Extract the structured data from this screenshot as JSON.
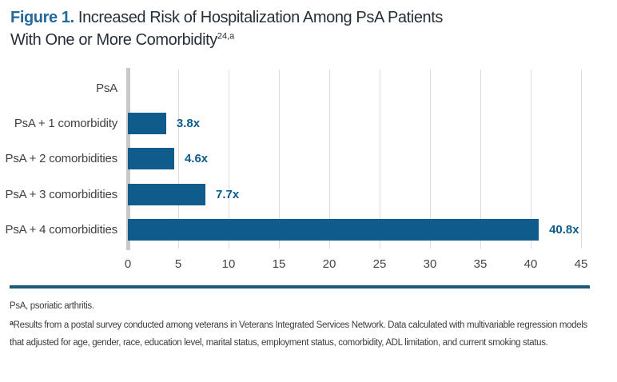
{
  "title": {
    "prefix": "Figure 1.",
    "line1_rest": " Increased Risk of Hospitalization Among PsA Patients",
    "line2": "With One or More Comorbidity",
    "superscript": "24,a"
  },
  "chart_data": {
    "type": "bar",
    "orientation": "horizontal",
    "title": "Figure 1. Increased Risk of Hospitalization Among PsA Patients With One or More Comorbidity",
    "categories": [
      "PsA",
      "PsA + 1 comorbidity",
      "PsA + 2 comorbidities",
      "PsA + 3 comorbidities",
      "PsA + 4 comorbidities"
    ],
    "values": [
      0,
      3.8,
      4.6,
      7.7,
      40.8
    ],
    "value_labels": [
      "",
      "3.8x",
      "4.6x",
      "7.7x",
      "40.8x"
    ],
    "xlabel": "",
    "ylabel": "",
    "xlim": [
      0,
      45
    ],
    "x_ticks": [
      0,
      5,
      10,
      15,
      20,
      25,
      30,
      35,
      40,
      45
    ],
    "grid": true,
    "legend": false,
    "bar_color": "#0f5b8c",
    "value_label_color": "#0f5b8c"
  },
  "footnotes": {
    "abbreviation": "PsA, psoriatic arthritis.",
    "note_marker": "a",
    "note_text": "Results from a postal survey conducted among veterans in Veterans Integrated Services Network. Data calculated with multivariable regression models that adjusted for age, gender, race, education level, marital status, employment status, comorbidity, ADL limitation, and current smoking status."
  },
  "colors": {
    "accent_blue": "#0f5b8c",
    "title_blue": "#24699c",
    "rule_teal": "#1e5a76",
    "gridline": "#dcdcdc",
    "axis_gray": "#c9c9c9",
    "text_dark": "#262f38",
    "text_gray": "#414141"
  }
}
